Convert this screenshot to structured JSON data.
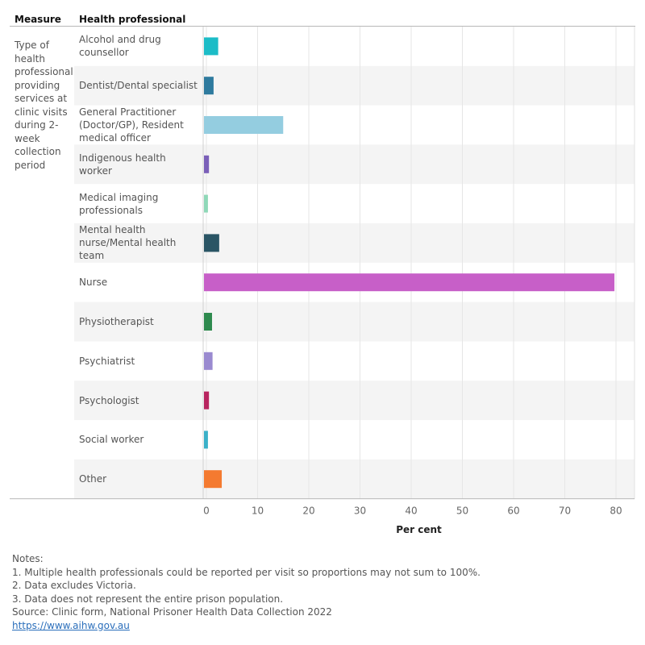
{
  "header": {
    "measure": "Measure",
    "health_professional": "Health professional"
  },
  "measure_label": "Type of health professional providing services at clinic visits during 2-week collection period",
  "chart_data": {
    "type": "bar",
    "orientation": "horizontal",
    "categories": [
      "Alcohol and drug counsellor",
      "Dentist/Dental specialist",
      "General Practitioner (Doctor/GP), Resident medical officer",
      "Indigenous health worker",
      "Medical imaging professionals",
      "Mental health nurse/Mental health team",
      "Nurse",
      "Physiotherapist",
      "Psychiatrist",
      "Psychologist",
      "Social worker",
      "Other"
    ],
    "values": [
      2.3,
      1.4,
      15.0,
      0.5,
      0.3,
      2.5,
      79.7,
      1.1,
      1.2,
      0.5,
      0.3,
      3.0
    ],
    "colors": [
      "#1cbcc7",
      "#2e7a9e",
      "#94cde0",
      "#7a5fb8",
      "#8fd8b8",
      "#2a5565",
      "#c75fc8",
      "#2e8a4e",
      "#9a8ad0",
      "#b8245f",
      "#3ab0c8",
      "#f47a30"
    ],
    "xlabel": "Per cent",
    "xlim": [
      0,
      83
    ],
    "xticks": [
      0,
      10,
      20,
      30,
      40,
      50,
      60,
      70,
      80
    ],
    "grid": true
  },
  "notes": {
    "heading": "Notes:",
    "items": [
      "1. Multiple health professionals could be reported per visit so proportions may not sum to 100%.",
      "2. Data excludes Victoria.",
      "3. Data does not represent the entire prison population."
    ],
    "source": "Source: Clinic form, National Prisoner Health Data Collection 2022",
    "link": "https://www.aihw.gov.au"
  }
}
